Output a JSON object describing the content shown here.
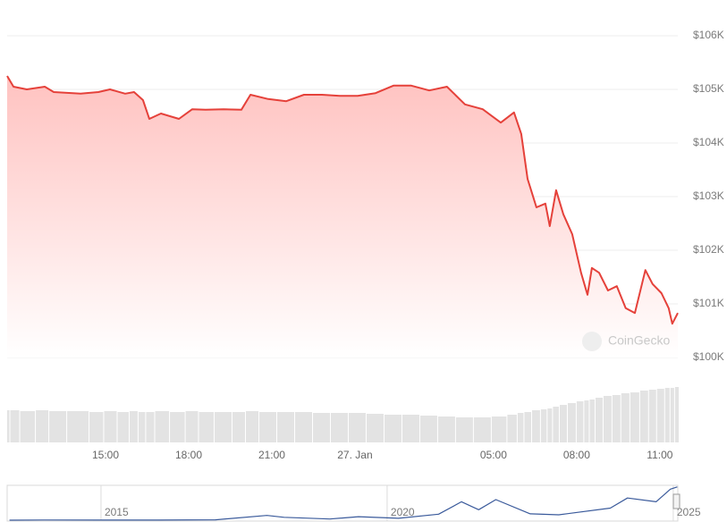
{
  "chart_data": [
    {
      "type": "line",
      "color": "#e5413a",
      "fill": true,
      "grid": true,
      "x": [
        11.45,
        11.68,
        12.16,
        12.81,
        13.13,
        14.1,
        14.74,
        15.16,
        15.71,
        16.03,
        16.35,
        16.58,
        17.0,
        17.65,
        18.13,
        18.61,
        19.26,
        19.9,
        20.23,
        20.87,
        21.52,
        22.16,
        22.81,
        23.45,
        24.1,
        24.74,
        25.39,
        26.03,
        26.68,
        27.32,
        27.97,
        28.61,
        29.26,
        29.74,
        30.0,
        30.23,
        30.55,
        30.87,
        31.03,
        31.26,
        31.52,
        31.84,
        32.16,
        32.39,
        32.55,
        32.81,
        33.13,
        33.45,
        33.77,
        34.1,
        34.48,
        34.74,
        35.06,
        35.32,
        35.45,
        35.65
      ],
      "values": [
        105250,
        105050,
        105000,
        105050,
        104950,
        104920,
        104950,
        105000,
        104920,
        104950,
        104800,
        104450,
        104550,
        104450,
        104630,
        104620,
        104630,
        104620,
        104900,
        104820,
        104780,
        104900,
        104900,
        104880,
        104880,
        104930,
        105070,
        105070,
        104980,
        105050,
        104720,
        104630,
        104380,
        104570,
        104170,
        103330,
        102800,
        102870,
        102450,
        103120,
        102670,
        102300,
        101580,
        101170,
        101670,
        101580,
        101250,
        101330,
        100920,
        100830,
        101630,
        101370,
        101200,
        100920,
        100630,
        100830
      ],
      "xlim": [
        11.45,
        35.65
      ],
      "xticks": [
        {
          "value": 15,
          "label": "15:00"
        },
        {
          "value": 18,
          "label": "18:00"
        },
        {
          "value": 21,
          "label": "21:00"
        },
        {
          "value": 24,
          "label": "27. Jan"
        },
        {
          "value": 29,
          "label": "05:00"
        },
        {
          "value": 32,
          "label": "08:00"
        },
        {
          "value": 35,
          "label": "11:00"
        }
      ],
      "ylim": [
        100000,
        106000
      ],
      "yticks": [
        {
          "value": 100000,
          "label": "$100K"
        },
        {
          "value": 101000,
          "label": "$101K"
        },
        {
          "value": 102000,
          "label": "$102K"
        },
        {
          "value": 103000,
          "label": "$103K"
        },
        {
          "value": 104000,
          "label": "$104K"
        },
        {
          "value": 105000,
          "label": "$105K"
        },
        {
          "value": 106000,
          "label": "$106K"
        }
      ],
      "watermark": "CoinGecko"
    },
    {
      "type": "bar",
      "color": "#e3e3e3",
      "x": [
        11.45,
        11.68,
        12.16,
        12.81,
        13.13,
        14.1,
        14.74,
        15.16,
        15.71,
        16.03,
        16.35,
        16.58,
        17.0,
        17.65,
        18.13,
        18.61,
        19.26,
        19.9,
        20.23,
        20.87,
        21.52,
        22.16,
        22.81,
        23.45,
        24.1,
        24.74,
        25.39,
        26.03,
        26.68,
        27.32,
        27.97,
        28.61,
        29.26,
        29.74,
        30.0,
        30.23,
        30.55,
        30.87,
        31.03,
        31.26,
        31.52,
        31.84,
        32.16,
        32.39,
        32.55,
        32.81,
        33.13,
        33.45,
        33.77,
        34.1,
        34.48,
        34.74,
        35.06,
        35.32,
        35.45,
        35.65
      ],
      "values": [
        36,
        36,
        35,
        36,
        35,
        35,
        34,
        35,
        34,
        35,
        34,
        34,
        35,
        34,
        35,
        34,
        34,
        34,
        35,
        34,
        34,
        34,
        33,
        33,
        33,
        32,
        31,
        31,
        30,
        29,
        28,
        28,
        29,
        31,
        33,
        34,
        36,
        37,
        38,
        40,
        42,
        44,
        46,
        47,
        48,
        50,
        52,
        53,
        55,
        56,
        58,
        59,
        60,
        61,
        61,
        62
      ],
      "xlim": [
        11.45,
        35.65
      ],
      "ylim": [
        0,
        70
      ]
    },
    {
      "type": "line",
      "color": "#3a5a9b",
      "fill": false,
      "grid": true,
      "x": [
        2013.4,
        2014.0,
        2015.0,
        2016.0,
        2017.0,
        2017.9,
        2018.2,
        2019.0,
        2019.5,
        2020.2,
        2020.9,
        2021.3,
        2021.6,
        2021.9,
        2022.5,
        2023.0,
        2023.9,
        2024.2,
        2024.7,
        2024.95,
        2025.07
      ],
      "values": [
        100,
        500,
        300,
        400,
        1000,
        15000,
        9000,
        3700,
        11000,
        6000,
        19000,
        58000,
        33000,
        65000,
        20000,
        17000,
        38000,
        70000,
        58000,
        98000,
        105000
      ],
      "xlim": [
        2013.36,
        2025.08
      ],
      "ylim": [
        0,
        110000
      ],
      "xticks": [
        2015,
        2020,
        2025
      ]
    }
  ]
}
